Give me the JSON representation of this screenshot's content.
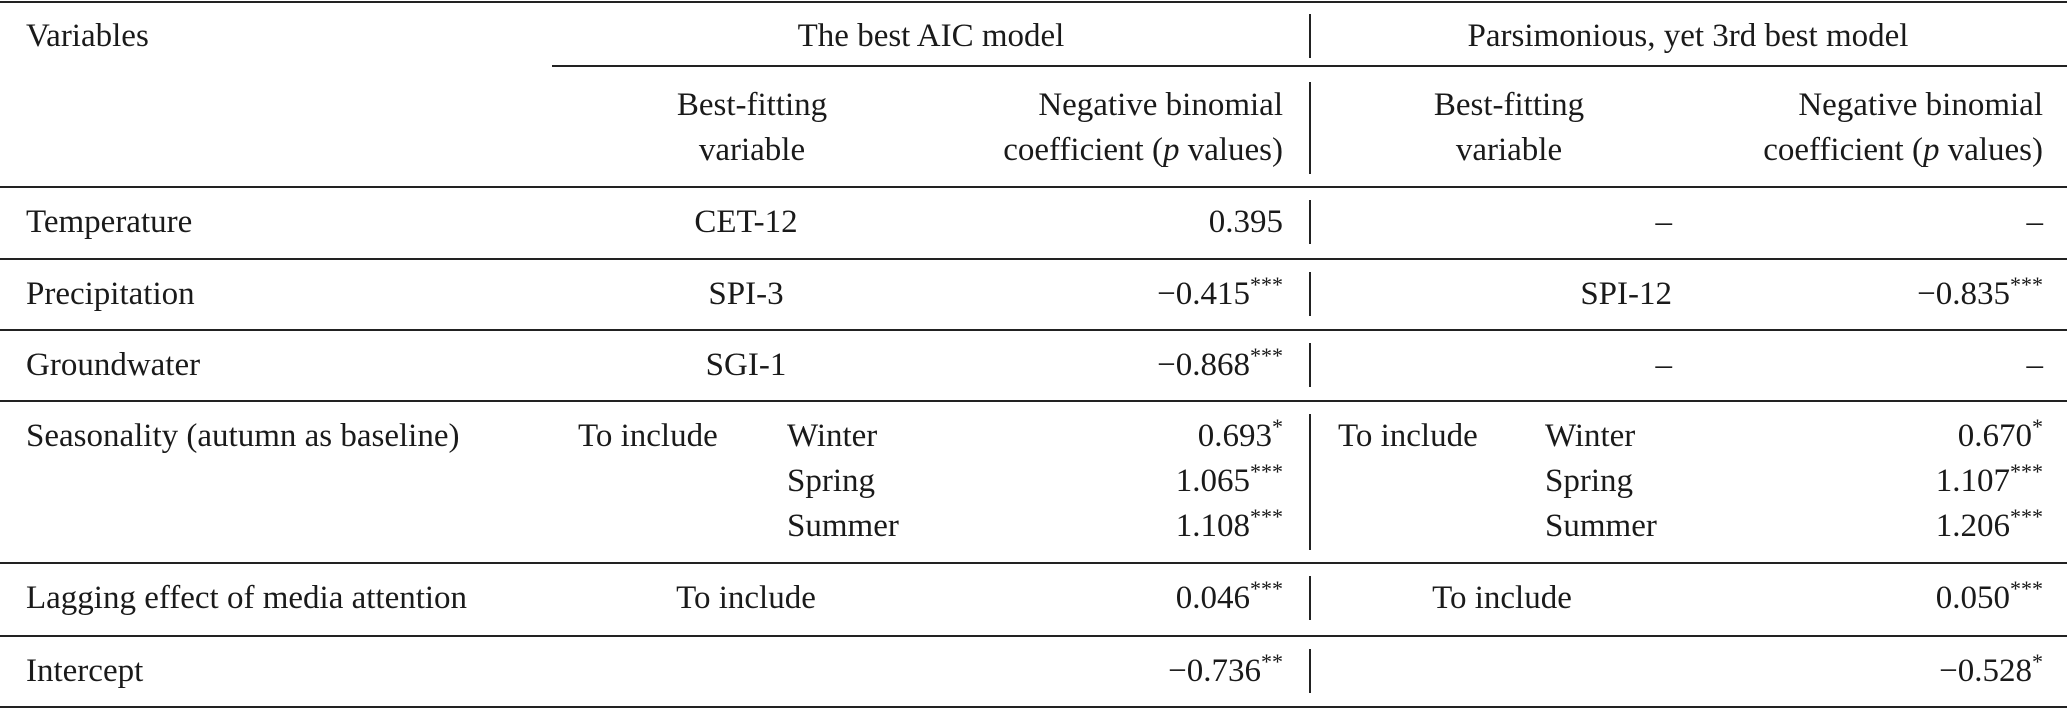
{
  "table": {
    "header": {
      "variables_label": "Variables",
      "group1_title": "The best AIC model",
      "group2_title": "Parsimonious, yet 3rd best model",
      "sub_best_fitting": [
        "Best-fitting",
        "variable"
      ],
      "sub_coef_line1": "Negative binomial",
      "sub_coef_line2_pre": "coefficient (",
      "sub_coef_line2_p": "p",
      "sub_coef_line2_post": " values)"
    },
    "rows": {
      "temperature": {
        "label": "Temperature",
        "m1_var": "CET-12",
        "m1_coef": "0.395",
        "m1_sig": "",
        "m2_var": "–",
        "m2_coef": "–",
        "m2_sig": ""
      },
      "precipitation": {
        "label": "Precipitation",
        "m1_var": "SPI-3",
        "m1_coef": "−0.415",
        "m1_sig": "***",
        "m2_var": "SPI-12",
        "m2_coef": "−0.835",
        "m2_sig": "***"
      },
      "groundwater": {
        "label": "Groundwater",
        "m1_var": "SGI-1",
        "m1_coef": "−0.868",
        "m1_sig": "***",
        "m2_var": "–",
        "m2_coef": "–",
        "m2_sig": ""
      },
      "seasonality": {
        "label": "Seasonality (autumn as baseline)",
        "m1_include": "To include",
        "m2_include": "To include",
        "seasons": [
          "Winter",
          "Spring",
          "Summer"
        ],
        "m1_coefs": [
          "0.693",
          "1.065",
          "1.108"
        ],
        "m1_sigs": [
          "*",
          "***",
          "***"
        ],
        "m2_coefs": [
          "0.670",
          "1.107",
          "1.206"
        ],
        "m2_sigs": [
          "*",
          "***",
          "***"
        ]
      },
      "media": {
        "label": "Lagging effect of media attention",
        "m1_var": "To include",
        "m1_coef": "0.046",
        "m1_sig": "***",
        "m2_var": "To include",
        "m2_coef": "0.050",
        "m2_sig": "***"
      },
      "intercept": {
        "label": "Intercept",
        "m1_coef": "−0.736",
        "m1_sig": "**",
        "m2_coef": "−0.528",
        "m2_sig": "*"
      }
    }
  }
}
